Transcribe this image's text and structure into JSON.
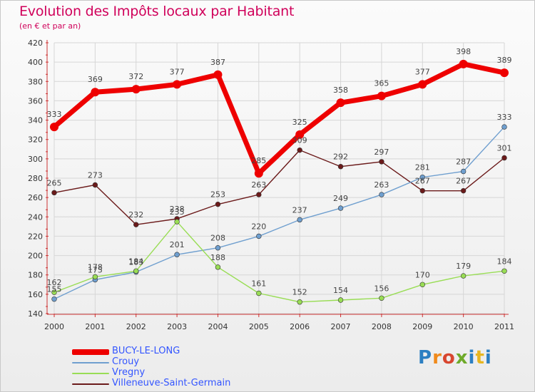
{
  "chart_data": {
    "type": "line",
    "title": "Evolution des Impôts locaux par Habitant",
    "subtitle": "(en € et par an)",
    "x": [
      "2000",
      "2001",
      "2002",
      "2003",
      "2004",
      "2005",
      "2006",
      "2007",
      "2008",
      "2009",
      "2010",
      "2011"
    ],
    "ylim": [
      140,
      420
    ],
    "yticks": [
      140,
      160,
      180,
      200,
      220,
      240,
      260,
      280,
      300,
      320,
      340,
      360,
      380,
      400,
      420
    ],
    "grid": true,
    "legend_position": "bottom-left",
    "series": [
      {
        "name": "BUCY-LE-LONG",
        "color": "#ee0000",
        "values": [
          333,
          369,
          372,
          377,
          387,
          285,
          325,
          358,
          365,
          377,
          398,
          389
        ]
      },
      {
        "name": "Crouy",
        "color": "#6f9fcf",
        "values": [
          155,
          175,
          183,
          201,
          208,
          220,
          237,
          249,
          263,
          281,
          287,
          333
        ]
      },
      {
        "name": "Vregny",
        "color": "#99dd55",
        "values": [
          162,
          178,
          184,
          235,
          188,
          161,
          152,
          154,
          156,
          170,
          179,
          184
        ]
      },
      {
        "name": "Villeneuve-Saint-Germain",
        "color": "#6b1a1a",
        "values": [
          265,
          273,
          232,
          238,
          253,
          263,
          309,
          292,
          297,
          267,
          267,
          301
        ]
      }
    ]
  },
  "logo_text": "Proxiti"
}
